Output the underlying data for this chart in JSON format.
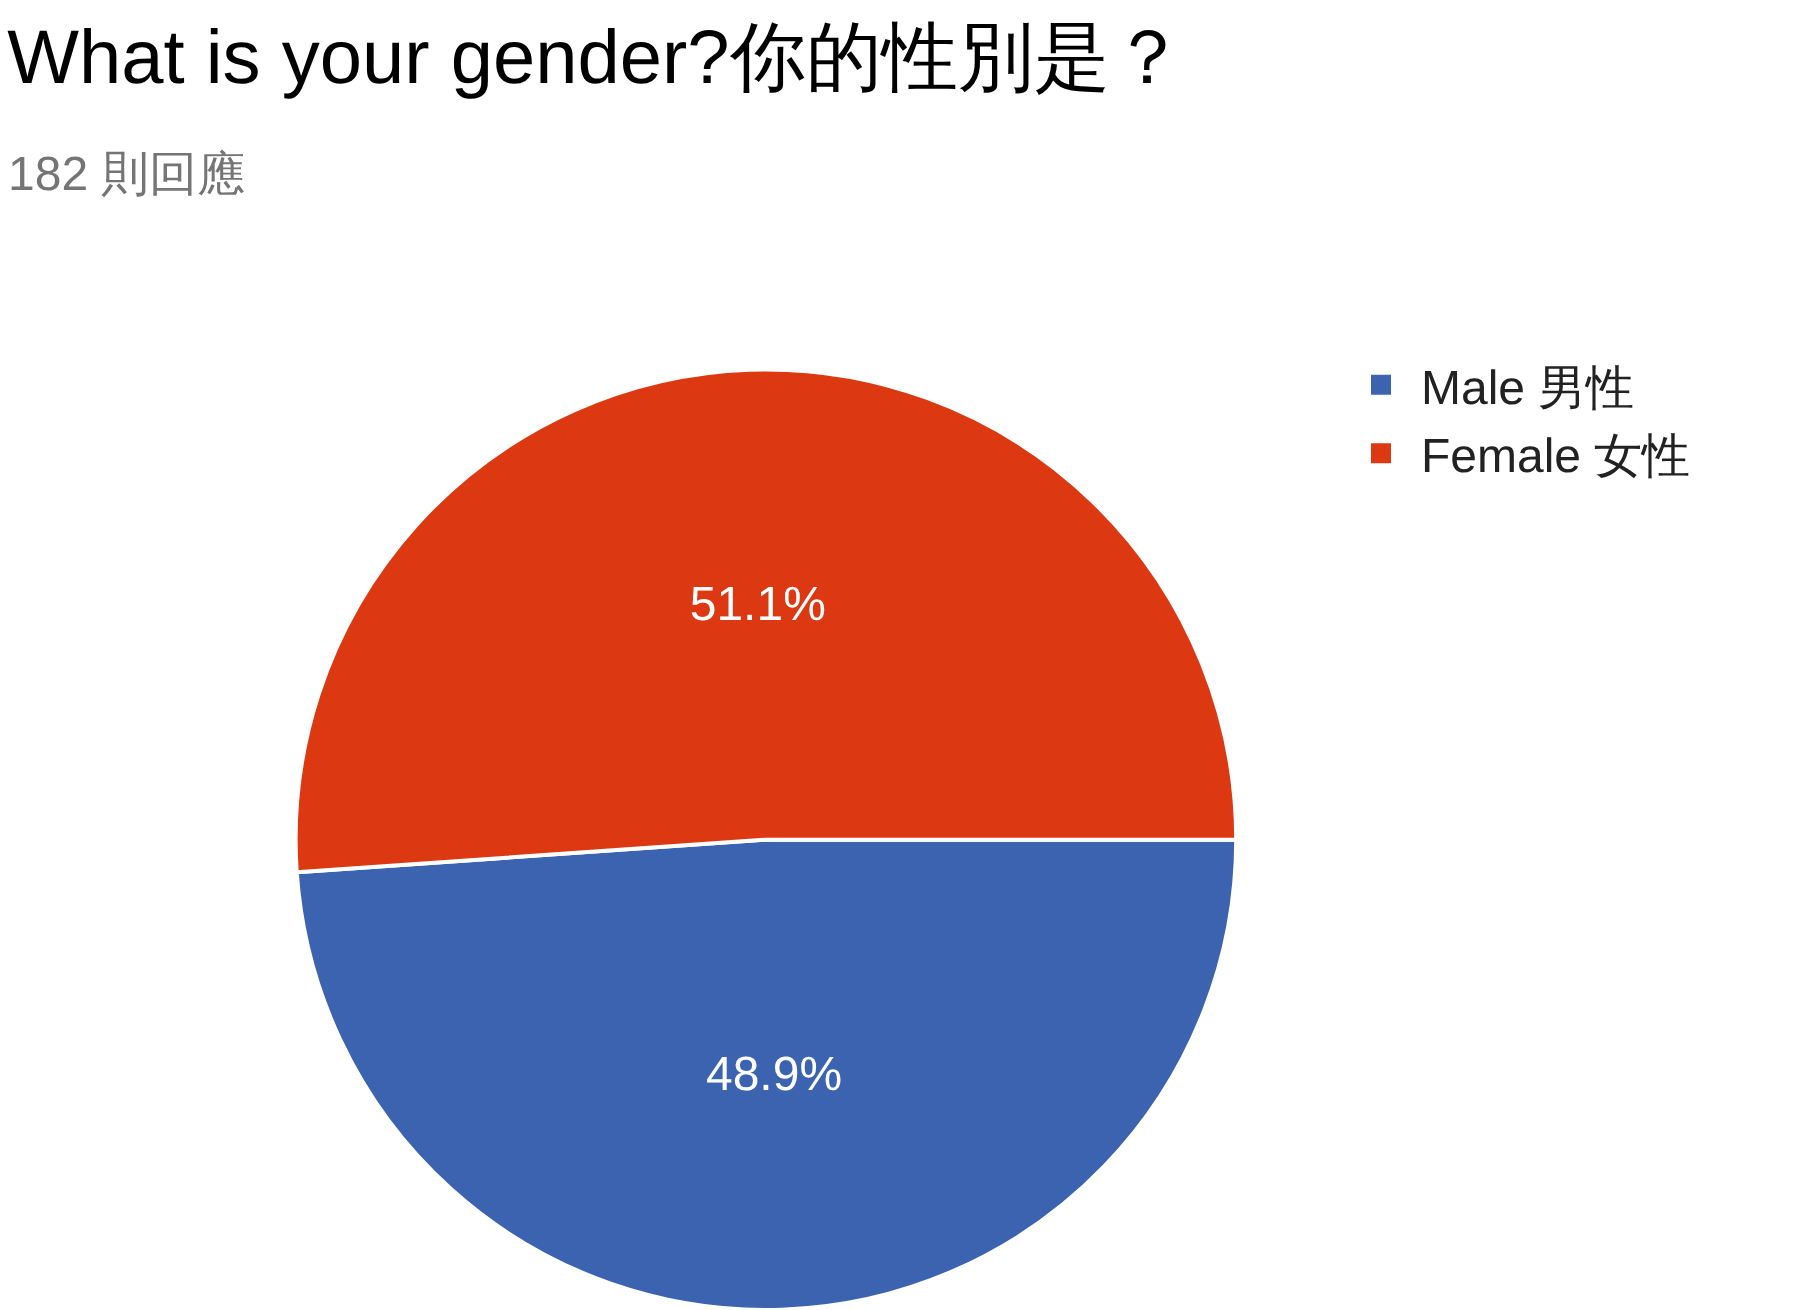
{
  "chart_data": {
    "type": "pie",
    "title": "What is your gender?你的性別是？",
    "subtitle": "182 則回應",
    "categories": [
      "Male 男性",
      "Female 女性"
    ],
    "values": [
      48.9,
      51.1
    ],
    "value_labels": [
      "48.9%",
      "51.1%"
    ],
    "colors": [
      "#3b63b0",
      "#dc3912"
    ],
    "legend": "top right"
  }
}
